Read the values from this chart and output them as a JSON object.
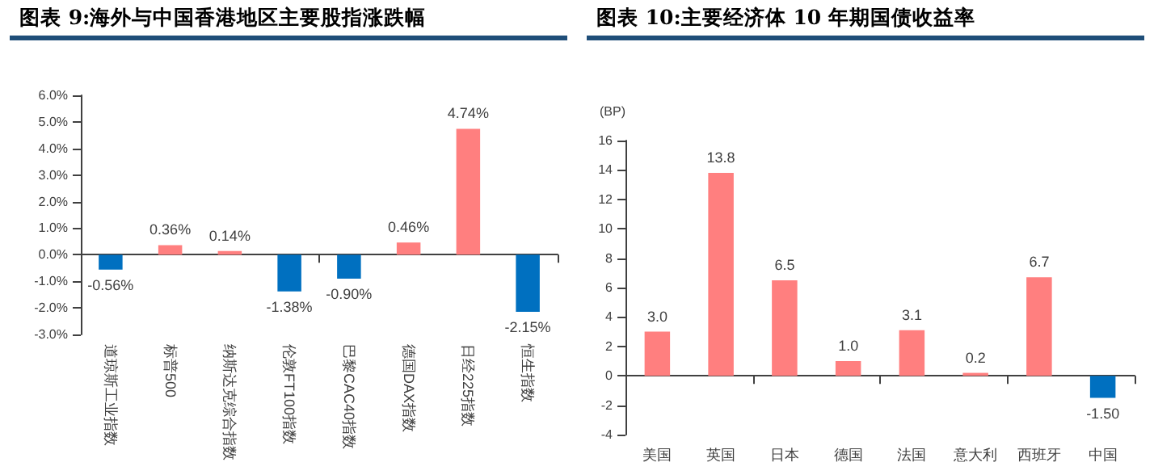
{
  "chart_data": [
    {
      "type": "bar",
      "title": "图表 9:海外与中国香港地区主要股指涨跌幅",
      "categories": [
        "道琼斯工业指数",
        "标普500",
        "纳斯达克综合指数",
        "伦敦FT100指数",
        "巴黎CAC40指数",
        "德国DAX指数",
        "日经225指数",
        "恒生指数"
      ],
      "values": [
        -0.56,
        0.36,
        0.14,
        -1.38,
        -0.9,
        0.46,
        4.74,
        -2.15
      ],
      "colors": [
        "#0070c0",
        "#ff7f7f",
        "#ff7f7f",
        "#0070c0",
        "#0070c0",
        "#ff7f7f",
        "#ff7f7f",
        "#0070c0"
      ],
      "value_labels": [
        "-0.56%",
        "0.36%",
        "0.14%",
        "-1.38%",
        "-0.90%",
        "0.46%",
        "4.74%",
        "-2.15%"
      ],
      "ylim": [
        -3,
        6
      ],
      "yticks": [
        {
          "value": -3,
          "label": "-3.0%"
        },
        {
          "value": -2,
          "label": "-2.0%"
        },
        {
          "value": -1,
          "label": "-1.0%"
        },
        {
          "value": 0,
          "label": "0.0%"
        },
        {
          "value": 1,
          "label": "1.0%"
        },
        {
          "value": 2,
          "label": "2.0%"
        },
        {
          "value": 3,
          "label": "3.0%"
        },
        {
          "value": 4,
          "label": "4.0%"
        },
        {
          "value": 5,
          "label": "5.0%"
        },
        {
          "value": 6,
          "label": "6.0%"
        }
      ]
    },
    {
      "type": "bar",
      "title": "图表 10:主要经济体 10 年期国债收益率",
      "ylabel": "(BP)",
      "categories": [
        "美国",
        "英国",
        "日本",
        "德国",
        "法国",
        "意大利",
        "西班牙",
        "中国"
      ],
      "values": [
        3.0,
        13.8,
        6.5,
        1.0,
        3.1,
        0.2,
        6.7,
        -1.5
      ],
      "colors": [
        "#ff7f7f",
        "#ff7f7f",
        "#ff7f7f",
        "#ff7f7f",
        "#ff7f7f",
        "#ff7f7f",
        "#ff7f7f",
        "#0070c0"
      ],
      "value_labels": [
        "3.0",
        "13.8",
        "6.5",
        "1.0",
        "3.1",
        "0.2",
        "6.7",
        "-1.50"
      ],
      "ylim": [
        -4,
        16
      ],
      "yticks": [
        -4,
        -2,
        0,
        2,
        4,
        6,
        8,
        10,
        12,
        14,
        16
      ]
    }
  ]
}
